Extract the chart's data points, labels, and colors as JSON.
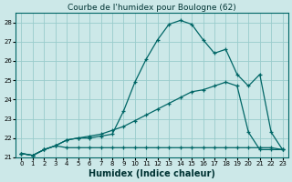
{
  "title": "Courbe de l'humidex pour Boulogne (62)",
  "xlabel": "Humidex (Indice chaleur)",
  "bg_color": "#cce8e8",
  "grid_color": "#99cccc",
  "line_color": "#006666",
  "xlim": [
    -0.5,
    23.5
  ],
  "ylim": [
    21.0,
    28.5
  ],
  "yticks": [
    21,
    22,
    23,
    24,
    25,
    26,
    27,
    28
  ],
  "xticks": [
    0,
    1,
    2,
    3,
    4,
    5,
    6,
    7,
    8,
    9,
    10,
    11,
    12,
    13,
    14,
    15,
    16,
    17,
    18,
    19,
    20,
    21,
    22,
    23
  ],
  "series1_x": [
    0,
    1,
    2,
    3,
    4,
    5,
    6,
    7,
    8,
    9,
    10,
    11,
    12,
    13,
    14,
    15,
    16,
    17,
    18,
    19,
    20,
    21,
    22,
    23
  ],
  "series1_y": [
    21.2,
    21.1,
    21.4,
    21.6,
    21.9,
    22.0,
    22.0,
    22.1,
    22.2,
    23.4,
    24.9,
    26.1,
    27.1,
    27.9,
    28.1,
    27.9,
    27.1,
    26.4,
    26.6,
    25.3,
    24.7,
    25.3,
    22.3,
    21.4
  ],
  "series2_x": [
    0,
    1,
    2,
    3,
    4,
    5,
    6,
    7,
    8,
    9,
    10,
    11,
    12,
    13,
    14,
    15,
    16,
    17,
    18,
    19,
    20,
    21,
    22,
    23
  ],
  "series2_y": [
    21.2,
    21.1,
    21.4,
    21.6,
    21.9,
    22.0,
    22.1,
    22.2,
    22.4,
    22.6,
    22.9,
    23.2,
    23.5,
    23.8,
    24.1,
    24.4,
    24.5,
    24.7,
    24.9,
    24.7,
    22.3,
    21.4,
    21.4,
    21.4
  ],
  "series3_x": [
    0,
    1,
    2,
    3,
    4,
    5,
    6,
    7,
    8,
    9,
    10,
    11,
    12,
    13,
    14,
    15,
    16,
    17,
    18,
    19,
    20,
    21,
    22,
    23
  ],
  "series3_y": [
    21.2,
    21.1,
    21.4,
    21.6,
    21.5,
    21.5,
    21.5,
    21.5,
    21.5,
    21.5,
    21.5,
    21.5,
    21.5,
    21.5,
    21.5,
    21.5,
    21.5,
    21.5,
    21.5,
    21.5,
    21.5,
    21.5,
    21.5,
    21.4
  ],
  "xlabel_fontsize": 7,
  "tick_fontsize": 5,
  "title_fontsize": 6.5
}
